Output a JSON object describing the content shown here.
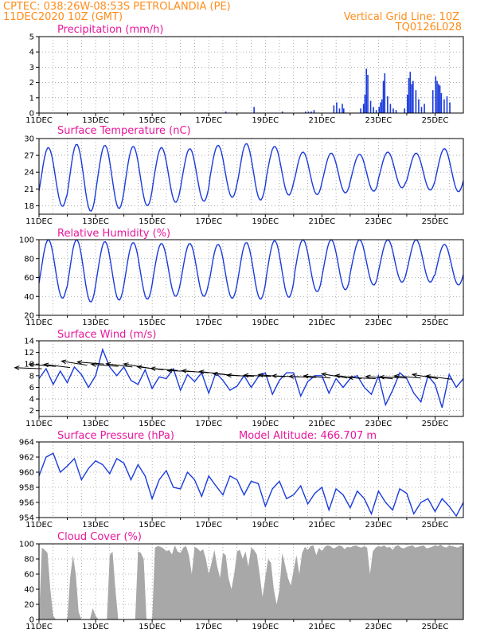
{
  "header": {
    "line1_left": "CPTEC:   038:26W-08:53S   PETROLANDIA (PE)",
    "line2_left": "11DEC2020 10Z (GMT)",
    "line1_right": "Vertical Grid Line: 10Z",
    "line2_right": "TQ0126L028"
  },
  "colors": {
    "header": "#ff8c1a",
    "panel_title": "#e8179b",
    "series": "#1a3bdc",
    "wind_arrows": "#000000",
    "cloud_fill": "#a8a8a8"
  },
  "chart_data": [
    {
      "type": "bar",
      "title": "Precipitation (mm/h)",
      "x_labels": [
        "11DEC",
        "13DEC",
        "15DEC",
        "17DEC",
        "19DEC",
        "21DEC",
        "23DEC",
        "25DEC"
      ],
      "x_tick_days": [
        0,
        2,
        4,
        6,
        8,
        10,
        12,
        14
      ],
      "xlim_days": [
        0,
        15
      ],
      "ylim": [
        0,
        5
      ],
      "yticks": [
        0,
        1,
        2,
        3,
        4,
        5
      ],
      "grid": true,
      "series": [
        {
          "x_days": [
            6.58,
            7.58,
            8.58,
            9.4,
            9.5,
            9.6,
            9.7,
            10.4,
            10.5,
            10.6,
            10.7,
            10.75,
            11.35,
            11.45,
            11.5,
            11.55,
            11.6,
            11.7,
            11.8,
            11.9,
            12.0,
            12.05,
            12.1,
            12.15,
            12.2,
            12.3,
            12.4,
            12.5,
            12.6,
            12.9,
            13.0,
            13.05,
            13.1,
            13.15,
            13.2,
            13.3,
            13.4,
            13.5,
            13.6,
            13.9,
            14.0,
            14.05,
            14.1,
            14.15,
            14.2,
            14.3,
            14.4,
            14.5
          ],
          "values": [
            0.1,
            0.4,
            0.1,
            0.1,
            0.1,
            0.1,
            0.2,
            0.5,
            0.7,
            0.3,
            0.6,
            0.3,
            0.3,
            0.6,
            1.2,
            2.9,
            2.5,
            0.8,
            0.4,
            0.2,
            0.4,
            0.7,
            0.9,
            2.1,
            2.6,
            1.1,
            0.6,
            0.3,
            0.2,
            0.3,
            1.2,
            2.3,
            2.7,
            1.9,
            2.1,
            1.5,
            0.9,
            0.4,
            0.6,
            1.5,
            2.4,
            2.1,
            1.9,
            1.8,
            1.3,
            0.9,
            1.1,
            0.7
          ]
        }
      ]
    },
    {
      "type": "line",
      "title": "Surface Temperature (nC)",
      "x_labels": [
        "11DEC",
        "13DEC",
        "15DEC",
        "17DEC",
        "19DEC",
        "21DEC",
        "23DEC",
        "25DEC"
      ],
      "x_tick_days": [
        0,
        2,
        4,
        6,
        8,
        10,
        12,
        14
      ],
      "xlim_days": [
        0,
        15
      ],
      "ylim": [
        16.5,
        30
      ],
      "yticks": [
        18,
        21,
        24,
        27,
        30
      ],
      "grid": true,
      "daily_max": [
        28.4,
        29.0,
        28.8,
        28.6,
        28.4,
        28.2,
        28.8,
        29.1,
        28.6,
        27.6,
        27.4,
        27.2,
        27.6,
        27.4,
        28.2
      ],
      "daily_min": [
        17.9,
        17.0,
        17.5,
        18.0,
        18.6,
        18.8,
        19.5,
        19.0,
        19.9,
        20.0,
        20.3,
        20.6,
        21.2,
        20.8,
        20.5
      ]
    },
    {
      "type": "line",
      "title": "Relative Humidity (%)",
      "x_labels": [
        "11DEC",
        "13DEC",
        "15DEC",
        "17DEC",
        "19DEC",
        "21DEC",
        "23DEC",
        "25DEC"
      ],
      "x_tick_days": [
        0,
        2,
        4,
        6,
        8,
        10,
        12,
        14
      ],
      "xlim_days": [
        0,
        15
      ],
      "ylim": [
        20,
        100
      ],
      "yticks": [
        20,
        40,
        60,
        80,
        100
      ],
      "grid": true,
      "daily_max": [
        100,
        100,
        98,
        97,
        96,
        96,
        95,
        97,
        99,
        100,
        100,
        100,
        100,
        100,
        95
      ],
      "daily_min": [
        38,
        34,
        36,
        37,
        40,
        40,
        38,
        37,
        39,
        45,
        47,
        52,
        55,
        55,
        52
      ]
    },
    {
      "type": "line",
      "title": "Surface Wind (m/s)",
      "x_labels": [
        "11DEC",
        "13DEC",
        "15DEC",
        "17DEC",
        "19DEC",
        "21DEC",
        "23DEC",
        "25DEC"
      ],
      "x_tick_days": [
        0,
        2,
        4,
        6,
        8,
        10,
        12,
        14
      ],
      "xlim_days": [
        0,
        15
      ],
      "ylim": [
        1,
        14
      ],
      "yticks": [
        2,
        4,
        6,
        8,
        10,
        12,
        14
      ],
      "grid": true,
      "series": [
        {
          "name": "speed",
          "x_days": [
            0,
            0.25,
            0.5,
            0.75,
            1,
            1.25,
            1.5,
            1.75,
            2,
            2.25,
            2.5,
            2.75,
            3,
            3.25,
            3.5,
            3.75,
            4,
            4.25,
            4.5,
            4.75,
            5,
            5.25,
            5.5,
            5.75,
            6,
            6.25,
            6.5,
            6.75,
            7,
            7.25,
            7.5,
            7.75,
            8,
            8.25,
            8.5,
            8.75,
            9,
            9.25,
            9.5,
            9.75,
            10,
            10.25,
            10.5,
            10.75,
            11,
            11.25,
            11.5,
            11.75,
            12,
            12.25,
            12.5,
            12.75,
            13,
            13.25,
            13.5,
            13.75,
            14,
            14.25,
            14.5,
            14.75,
            15
          ],
          "values": [
            7.5,
            9.2,
            6.5,
            8.8,
            6.8,
            9.5,
            8.2,
            6.0,
            8.0,
            12.5,
            9.5,
            8.0,
            9.5,
            7.2,
            6.5,
            9.0,
            5.8,
            7.8,
            7.5,
            9.2,
            5.5,
            8.2,
            7.0,
            8.5,
            5.0,
            8.5,
            7.2,
            5.5,
            6.2,
            8.0,
            6.0,
            7.8,
            8.5,
            4.8,
            7.2,
            8.5,
            8.5,
            4.5,
            7.0,
            8.0,
            8.0,
            5.0,
            7.5,
            6.0,
            7.5,
            8.0,
            6.0,
            4.8,
            8.0,
            3.0,
            5.5,
            8.5,
            7.5,
            5.0,
            3.5,
            8.0,
            6.5,
            2.5,
            8.2,
            6.0,
            7.5
          ]
        }
      ],
      "arrows": {
        "x_days": [
          0.1,
          0.6,
          1.1,
          1.7,
          2.3,
          2.8,
          3.3,
          3.9,
          4.4,
          4.9,
          5.5,
          6.0,
          6.6,
          7.1,
          7.6,
          8.2,
          8.7,
          9.2,
          9.8,
          10.3,
          10.9,
          11.4,
          11.9,
          12.5,
          13.0,
          13.5,
          14.1,
          14.6
        ],
        "speed_ms": [
          9.2,
          9.6,
          9.4,
          9.8,
          10.0,
          9.6,
          9.5,
          9.3,
          9.0,
          8.9,
          8.7,
          8.5,
          8.2,
          8.0,
          7.9,
          7.9,
          7.8,
          7.8,
          7.7,
          7.6,
          7.6,
          7.5,
          7.5,
          7.5,
          7.6,
          7.6,
          7.5,
          7.4
        ],
        "direction_deg": [
          95,
          100,
          105,
          110,
          100,
          100,
          105,
          110,
          105,
          100,
          95,
          100,
          105,
          100,
          95,
          95,
          100,
          95,
          95,
          100,
          110,
          105,
          95,
          100,
          95,
          100,
          110,
          105
        ]
      }
    },
    {
      "type": "line",
      "title": "Surface Pressure (hPa)",
      "annotation": "Model Altitude: 466.707 m",
      "x_labels": [
        "11DEC",
        "13DEC",
        "15DEC",
        "17DEC",
        "19DEC",
        "21DEC",
        "23DEC",
        "25DEC"
      ],
      "x_tick_days": [
        0,
        2,
        4,
        6,
        8,
        10,
        12,
        14
      ],
      "xlim_days": [
        0,
        15
      ],
      "ylim": [
        954,
        964
      ],
      "yticks": [
        954,
        956,
        958,
        960,
        962,
        964
      ],
      "grid": true,
      "series": [
        {
          "x_days": [
            0,
            0.25,
            0.5,
            0.75,
            1,
            1.25,
            1.5,
            1.75,
            2,
            2.25,
            2.5,
            2.75,
            3,
            3.25,
            3.5,
            3.75,
            4,
            4.25,
            4.5,
            4.75,
            5,
            5.25,
            5.5,
            5.75,
            6,
            6.25,
            6.5,
            6.75,
            7,
            7.25,
            7.5,
            7.75,
            8,
            8.25,
            8.5,
            8.75,
            9,
            9.25,
            9.5,
            9.75,
            10,
            10.25,
            10.5,
            10.75,
            11,
            11.25,
            11.5,
            11.75,
            12,
            12.25,
            12.5,
            12.75,
            13,
            13.25,
            13.5,
            13.75,
            14,
            14.25,
            14.5,
            14.75,
            15
          ],
          "values": [
            959.5,
            962.0,
            962.5,
            960.0,
            960.8,
            961.8,
            959.0,
            960.5,
            961.5,
            961.0,
            959.8,
            961.8,
            961.2,
            959.0,
            961.0,
            959.5,
            956.5,
            959.0,
            960.2,
            958.0,
            957.8,
            960.0,
            959.0,
            956.8,
            959.5,
            958.2,
            957.0,
            959.5,
            959.0,
            957.0,
            958.8,
            958.5,
            955.5,
            957.8,
            958.8,
            956.5,
            957.0,
            958.2,
            955.8,
            957.2,
            958.0,
            955.0,
            957.8,
            957.0,
            955.3,
            957.5,
            956.5,
            954.5,
            957.5,
            956.0,
            955.0,
            957.8,
            957.2,
            954.5,
            956.0,
            956.5,
            954.8,
            956.5,
            955.5,
            954.2,
            956.0
          ]
        }
      ]
    },
    {
      "type": "area",
      "title": "Cloud Cover (%)",
      "x_labels": [
        "11DEC",
        "13DEC",
        "15DEC",
        "17DEC",
        "19DEC",
        "21DEC",
        "23DEC",
        "25DEC"
      ],
      "x_tick_days": [
        0,
        2,
        4,
        6,
        8,
        10,
        12,
        14
      ],
      "xlim_days": [
        0,
        15
      ],
      "ylim": [
        0,
        100
      ],
      "yticks": [
        0,
        20,
        40,
        60,
        80,
        100
      ],
      "grid": true,
      "series": [
        {
          "x_days": [
            0,
            0.1,
            0.2,
            0.3,
            0.4,
            0.5,
            0.6,
            0.7,
            0.8,
            0.9,
            1.0,
            1.1,
            1.2,
            1.3,
            1.4,
            1.5,
            1.6,
            1.7,
            1.8,
            1.9,
            2.0,
            2.1,
            2.2,
            2.3,
            2.4,
            2.5,
            2.6,
            2.7,
            2.8,
            2.9,
            3.0,
            3.1,
            3.2,
            3.3,
            3.4,
            3.5,
            3.6,
            3.7,
            3.8,
            3.9,
            4.0,
            4.1,
            4.2,
            4.3,
            4.4,
            4.5,
            4.6,
            4.7,
            4.8,
            4.9,
            5.0,
            5.1,
            5.2,
            5.3,
            5.4,
            5.5,
            5.6,
            5.7,
            5.8,
            5.9,
            6.0,
            6.1,
            6.2,
            6.3,
            6.4,
            6.5,
            6.6,
            6.7,
            6.8,
            6.9,
            7.0,
            7.1,
            7.2,
            7.3,
            7.4,
            7.5,
            7.6,
            7.7,
            7.8,
            7.9,
            8.0,
            8.1,
            8.2,
            8.3,
            8.4,
            8.5,
            8.6,
            8.7,
            8.8,
            8.9,
            9.0,
            9.1,
            9.2,
            9.3,
            9.4,
            9.5,
            9.6,
            9.7,
            9.8,
            9.9,
            10.0,
            10.1,
            10.2,
            10.3,
            10.4,
            10.5,
            10.6,
            10.7,
            10.8,
            10.9,
            11.0,
            11.1,
            11.2,
            11.3,
            11.4,
            11.5,
            11.6,
            11.7,
            11.8,
            11.9,
            12.0,
            12.1,
            12.2,
            12.3,
            12.4,
            12.5,
            12.6,
            12.7,
            12.8,
            12.9,
            13.0,
            13.1,
            13.2,
            13.3,
            13.4,
            13.5,
            13.6,
            13.7,
            13.8,
            13.9,
            14.0,
            14.1,
            14.2,
            14.3,
            14.4,
            14.5,
            14.6,
            14.7,
            14.8,
            14.9,
            15.0
          ],
          "values": [
            0,
            95,
            92,
            88,
            40,
            5,
            0,
            0,
            0,
            0,
            0,
            55,
            85,
            60,
            10,
            0,
            0,
            0,
            0,
            15,
            5,
            0,
            0,
            0,
            0,
            85,
            90,
            40,
            0,
            0,
            0,
            0,
            0,
            0,
            0,
            90,
            88,
            80,
            0,
            0,
            0,
            95,
            97,
            96,
            94,
            90,
            92,
            86,
            98,
            90,
            88,
            95,
            97,
            85,
            60,
            96,
            94,
            90,
            93,
            80,
            60,
            75,
            92,
            70,
            55,
            88,
            85,
            55,
            40,
            60,
            90,
            92,
            80,
            90,
            70,
            95,
            92,
            86,
            60,
            30,
            55,
            80,
            75,
            40,
            20,
            40,
            88,
            72,
            55,
            45,
            65,
            85,
            60,
            88,
            96,
            92,
            97,
            98,
            85,
            95,
            90,
            96,
            98,
            97,
            94,
            95,
            98,
            97,
            93,
            96,
            95,
            97,
            98,
            96,
            95,
            97,
            95,
            60,
            90,
            95,
            97,
            96,
            98,
            95,
            96,
            92,
            97,
            98,
            95,
            94,
            96,
            97,
            98,
            95,
            96,
            97,
            98,
            94,
            95,
            96,
            98,
            97,
            99,
            96,
            95,
            98,
            97,
            96,
            95,
            97,
            98
          ]
        }
      ]
    }
  ]
}
